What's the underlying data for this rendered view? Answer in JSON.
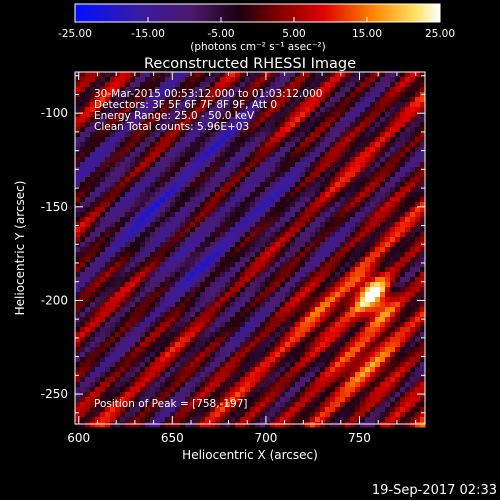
{
  "colorbar": {
    "tick_labels": [
      "-25.00",
      "-15.00",
      "-5.00",
      "5.00",
      "15.00",
      "25.00"
    ],
    "units": "(photons cm⁻² s⁻¹ asec⁻²)",
    "range": [
      -25,
      25
    ]
  },
  "chart_data": {
    "type": "heatmap",
    "title": "Reconstructed RHESSI Image",
    "xlabel": "Heliocentric X (arcsec)",
    "ylabel": "Heliocentric Y (arcsec)",
    "xlim": [
      598,
      785
    ],
    "ylim": [
      -266,
      -78
    ],
    "x_ticks": [
      "600",
      "650",
      "700",
      "750"
    ],
    "y_ticks": [
      "-100",
      "-150",
      "-200",
      "-250"
    ],
    "x_tick_values": [
      600,
      650,
      700,
      750
    ],
    "y_tick_values": [
      -100,
      -150,
      -200,
      -250
    ],
    "annotations": [
      "30-Mar-2015 00:53:12.000 to 01:03:12.000",
      "Detectors: 3F 5F 6F 7F 8F 9F, Att 0",
      "Energy Range: 25.0 - 50.0 keV",
      "Clean    Total counts: 5.96E+03"
    ],
    "peak_label": "Position of Peak = [758,-197]",
    "peak": {
      "x": 758,
      "y": -197,
      "value": 25
    },
    "colors": [
      "#0000ff",
      "#4a1a6a",
      "#000000",
      "#ff0000",
      "#ffa000",
      "#ffffff"
    ]
  },
  "footer": {
    "timestamp": "19-Sep-2017 02:33"
  }
}
